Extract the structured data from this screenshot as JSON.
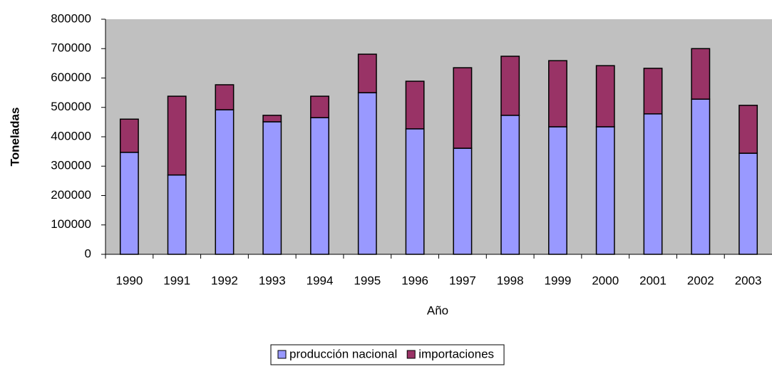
{
  "chart_data": {
    "type": "stacked-bar",
    "x_label": "Año",
    "y_label": "Toneladas",
    "categories": [
      "1990",
      "1991",
      "1992",
      "1993",
      "1994",
      "1995",
      "1996",
      "1997",
      "1998",
      "1999",
      "2000",
      "2001",
      "2002",
      "2003"
    ],
    "series": [
      {
        "name": "producción nacional",
        "color": "#9999ff",
        "values": [
          347000,
          270000,
          492000,
          451000,
          465000,
          550000,
          427000,
          361000,
          473000,
          434000,
          434000,
          478000,
          528000,
          344000
        ]
      },
      {
        "name": "importaciones",
        "color": "#993366",
        "values": [
          113000,
          268000,
          85000,
          22000,
          73000,
          131000,
          162000,
          274000,
          201000,
          225000,
          208000,
          155000,
          172000,
          163000
        ]
      }
    ],
    "ylim": [
      0,
      800000
    ],
    "yticks": [
      0,
      100000,
      200000,
      300000,
      400000,
      500000,
      600000,
      700000,
      800000
    ],
    "plot_background": "#c0c0c0",
    "grid": false,
    "legend": "bottom"
  }
}
